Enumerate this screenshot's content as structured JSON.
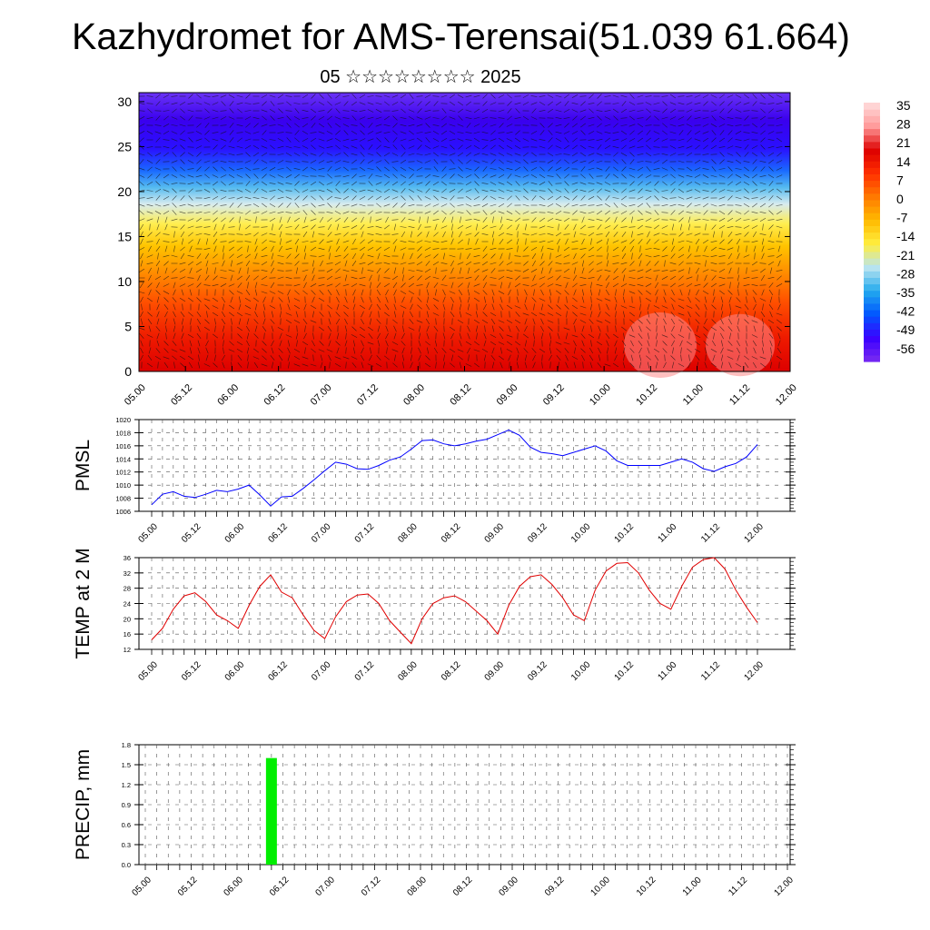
{
  "title": "Kazhydromet for AMS-Terensai(51.039 61.664)",
  "subtitle": "05 ☆☆☆☆☆☆☆☆ 2025",
  "colors": {
    "pmsl_line": "#0000ff",
    "temp_line": "#e00000",
    "precip_bar": "#00ee00",
    "colorbar": [
      "#7b2cf0",
      "#3b00ff",
      "#0055ff",
      "#22aaee",
      "#b8e4f0",
      "#ffee40",
      "#ffbb00",
      "#ff7a00",
      "#ff3000",
      "#dd0000",
      "#ff9999",
      "#ffdddd"
    ]
  },
  "chart_data": [
    {
      "type": "heatmap",
      "name": "upper",
      "x_ticks": [
        "05.00",
        "05.12",
        "06.00",
        "06.12",
        "07.00",
        "07.12",
        "08.00",
        "08.12",
        "09.00",
        "09.12",
        "10.00",
        "10.12",
        "11.00",
        "11.12",
        "12.00"
      ],
      "y_ticks": [
        0,
        5,
        10,
        15,
        20,
        25,
        30
      ],
      "ylim": [
        0,
        31
      ],
      "colorbar_ticks": [
        35,
        28,
        21,
        14,
        7,
        0,
        -7,
        -14,
        -21,
        -28,
        -35,
        -42,
        -49,
        -56
      ],
      "colorbar_range": [
        -63,
        38
      ]
    },
    {
      "type": "line",
      "name": "pmsl",
      "ylabel": "PMSL",
      "y_ticks": [
        1006,
        1008,
        1010,
        1012,
        1014,
        1016,
        1018,
        1020
      ],
      "ylim": [
        1006,
        1020
      ],
      "x_ticks": [
        "05.00",
        "05.12",
        "06.00",
        "06.12",
        "07.00",
        "07.12",
        "08.00",
        "08.12",
        "09.00",
        "09.12",
        "10.00",
        "10.12",
        "11.00",
        "11.12",
        "12.00"
      ],
      "series": [
        {
          "values": [
            1007.0,
            1008.6,
            1009.0,
            1008.3,
            1008.1,
            1008.6,
            1009.2,
            1009.0,
            1009.4,
            1010.0,
            1008.5,
            1006.8,
            1008.2,
            1008.3,
            1009.5,
            1010.8,
            1012.2,
            1013.5,
            1013.2,
            1012.5,
            1012.4,
            1013.0,
            1013.8,
            1014.3,
            1015.5,
            1016.8,
            1016.9,
            1016.3,
            1016.0,
            1016.3,
            1016.7,
            1017.0,
            1017.7,
            1018.4,
            1017.6,
            1015.8,
            1015.0,
            1014.8,
            1014.5,
            1015.0,
            1015.5,
            1016.0,
            1015.2,
            1013.7,
            1013.0,
            1013.0,
            1013.0,
            1013.0,
            1013.5,
            1014.0,
            1013.5,
            1012.5,
            1012.1,
            1012.8,
            1013.3,
            1014.3,
            1016.2
          ]
        }
      ]
    },
    {
      "type": "line",
      "name": "temp",
      "ylabel": "TEMP at 2 M",
      "y_ticks": [
        12,
        16,
        20,
        24,
        28,
        32,
        36
      ],
      "ylim": [
        12,
        36
      ],
      "x_ticks": [
        "05.00",
        "05.12",
        "06.00",
        "06.12",
        "07.00",
        "07.12",
        "08.00",
        "08.12",
        "09.00",
        "09.12",
        "10.00",
        "10.12",
        "11.00",
        "11.12",
        "12.00"
      ],
      "series": [
        {
          "values": [
            14.5,
            17.5,
            22.5,
            26.0,
            26.8,
            24.5,
            21.0,
            19.5,
            17.5,
            23.5,
            28.5,
            31.5,
            27.0,
            25.5,
            21.0,
            17.0,
            14.8,
            20.5,
            24.5,
            26.2,
            26.5,
            24.0,
            19.5,
            16.5,
            13.5,
            20.0,
            24.0,
            25.5,
            26.0,
            24.5,
            22.0,
            19.5,
            16.0,
            23.5,
            28.5,
            31.0,
            31.5,
            29.0,
            25.5,
            21.0,
            19.5,
            27.5,
            32.5,
            34.5,
            34.7,
            32.0,
            27.5,
            24.0,
            22.5,
            28.5,
            33.5,
            35.5,
            36.0,
            33.0,
            27.5,
            23.0,
            19.0
          ]
        }
      ]
    },
    {
      "type": "bar",
      "name": "precip",
      "ylabel": "PRECIP, mm",
      "y_ticks": [
        "0.0",
        "0.3",
        "0.6",
        "0.9",
        "1.2",
        "1.5",
        "1.8"
      ],
      "ylim": [
        0,
        1.8
      ],
      "x_ticks": [
        "05.00",
        "05.12",
        "06.00",
        "06.12",
        "07.00",
        "07.12",
        "08.00",
        "08.12",
        "09.00",
        "09.12",
        "10.00",
        "10.12",
        "11.00",
        "11.12",
        "12.00"
      ],
      "bars": [
        {
          "x": "06.09",
          "value": 1.6
        }
      ]
    }
  ]
}
